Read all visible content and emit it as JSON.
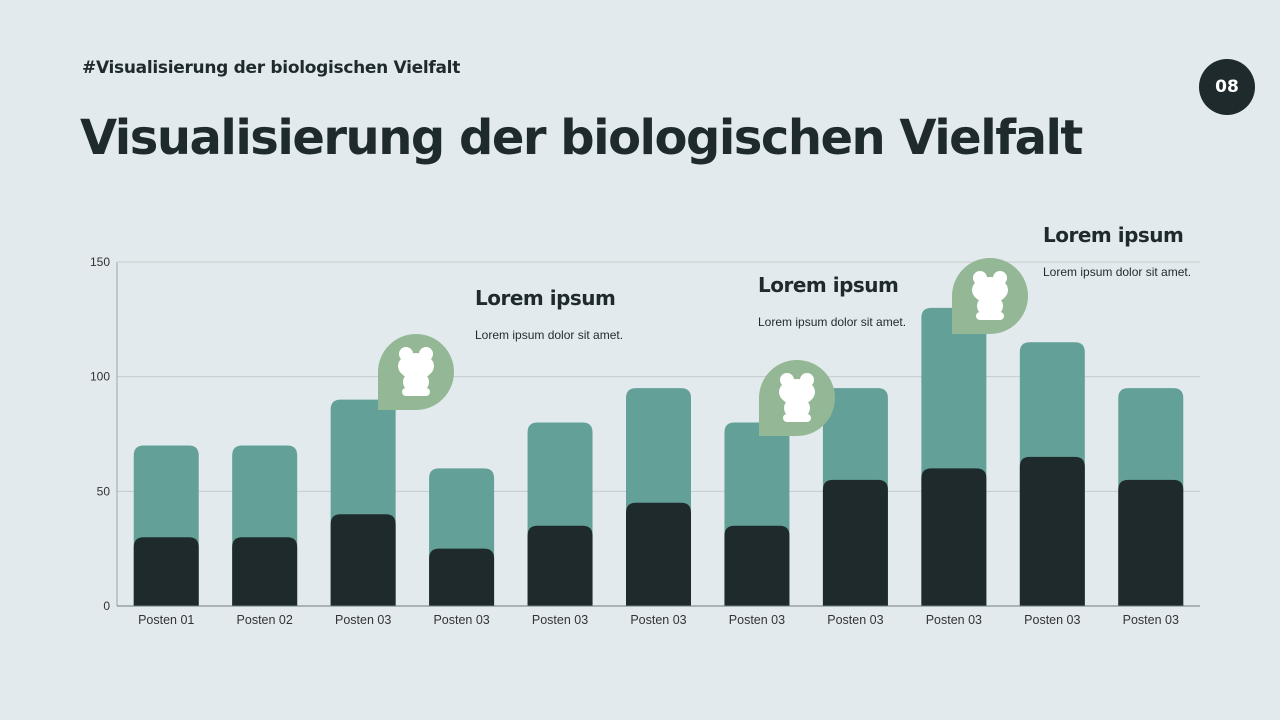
{
  "header": {
    "tag": "#Visualisierung der biologischen Vielfalt",
    "title": "Visualisierung der biologischen Vielfalt",
    "page_number": "08"
  },
  "annotations": [
    {
      "title": "Lorem ipsum",
      "text": "Lorem ipsum dolor sit amet.",
      "icon": "frog-icon"
    },
    {
      "title": "Lorem ipsum",
      "text": "Lorem ipsum dolor sit amet.",
      "icon": "frog-icon"
    },
    {
      "title": "Lorem ipsum",
      "text": "Lorem ipsum dolor sit amet.",
      "icon": "frog-icon"
    }
  ],
  "colors": {
    "series_back": "#63a098",
    "series_front": "#1f2a2c",
    "badge": "#94b895",
    "background": "#e3eaee"
  },
  "chart_data": {
    "type": "bar",
    "layout": "overlapping",
    "categories": [
      "Posten 01",
      "Posten 02",
      "Posten 03",
      "Posten 03",
      "Posten 03",
      "Posten 03",
      "Posten 03",
      "Posten 03",
      "Posten 03",
      "Posten 03",
      "Posten 03"
    ],
    "series": [
      {
        "values": [
          70,
          70,
          90,
          60,
          80,
          95,
          80,
          95,
          130,
          115,
          95
        ],
        "color": "#63a098"
      },
      {
        "values": [
          30,
          30,
          40,
          25,
          35,
          45,
          35,
          55,
          60,
          65,
          55
        ],
        "color": "#1f2a2c"
      }
    ],
    "ylim": [
      0,
      150
    ],
    "yticks": [
      0,
      50,
      100,
      150
    ],
    "grid": true
  }
}
